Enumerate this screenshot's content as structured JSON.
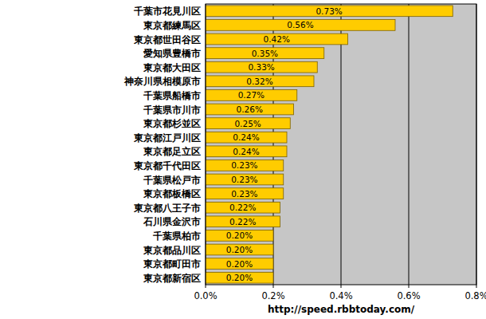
{
  "chart_data": {
    "type": "bar",
    "orientation": "horizontal",
    "categories": [
      "千葉市花見川区",
      "東京都練馬区",
      "東京都世田谷区",
      "愛知県豊橋市",
      "東京都大田区",
      "神奈川県相模原市",
      "千葉県船橋市",
      "千葉県市川市",
      "東京都杉並区",
      "東京都江戸川区",
      "東京都足立区",
      "東京都千代田区",
      "千葉県松戸市",
      "東京都板橋区",
      "東京都八王子市",
      "石川県金沢市",
      "千葉県柏市",
      "東京都品川区",
      "東京都町田市",
      "東京都新宿区"
    ],
    "values": [
      0.73,
      0.56,
      0.42,
      0.35,
      0.33,
      0.32,
      0.27,
      0.26,
      0.25,
      0.24,
      0.24,
      0.23,
      0.23,
      0.23,
      0.22,
      0.22,
      0.2,
      0.2,
      0.2,
      0.2
    ],
    "value_labels": [
      "0.73%",
      "0.56%",
      "0.42%",
      "0.35%",
      "0.33%",
      "0.32%",
      "0.27%",
      "0.26%",
      "0.25%",
      "0.24%",
      "0.24%",
      "0.23%",
      "0.23%",
      "0.23%",
      "0.22%",
      "0.22%",
      "0.20%",
      "0.20%",
      "0.20%",
      "0.20%"
    ],
    "color": "#ffcc00",
    "xlim": [
      0,
      0.8
    ],
    "xticks": [
      {
        "value": 0,
        "label": "0.0%"
      },
      {
        "value": 0.2,
        "label": "0.2%"
      },
      {
        "value": 0.4,
        "label": "0.4%"
      },
      {
        "value": 0.6,
        "label": "0.6%"
      },
      {
        "value": 0.8,
        "label": "0.8%"
      }
    ],
    "grid": true,
    "data_labels": true,
    "annotations": [
      "http://speed.rbbtoday.com/"
    ]
  }
}
